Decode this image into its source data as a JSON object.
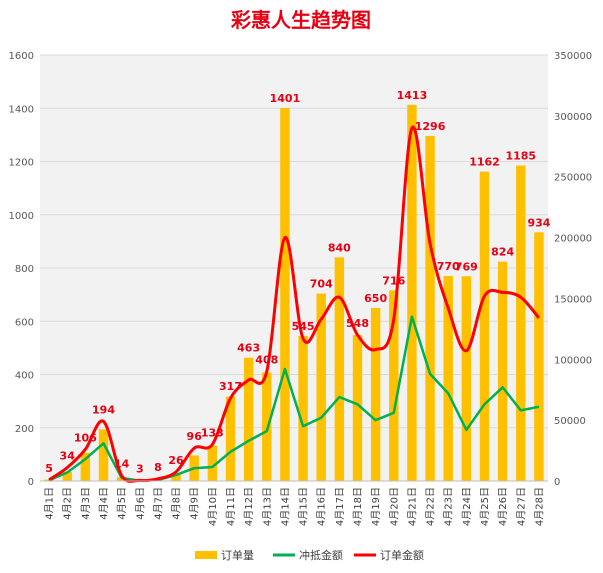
{
  "colors": {
    "bar": "#FFC000",
    "green_line": "#00B050",
    "red_line": "#FF0000",
    "title": "#E60012",
    "label": "#E60012",
    "plot_bg": "#F2F2F2",
    "grid": "#D9D9D9"
  },
  "chart_data": {
    "type": "bar",
    "title": "彩惠人生趋势图",
    "categories": [
      "4月1日",
      "4月2日",
      "4月3日",
      "4月4日",
      "4月5日",
      "4月6日",
      "4月7日",
      "4月8日",
      "4月9日",
      "4月10日",
      "4月11日",
      "4月12日",
      "4月13日",
      "4月14日",
      "4月15日",
      "4月16日",
      "4月17日",
      "4月18日",
      "4月19日",
      "4月20日",
      "4月21日",
      "4月22日",
      "4月23日",
      "4月24日",
      "4月25日",
      "4月26日",
      "4月27日",
      "4月28日"
    ],
    "left_axis": {
      "min": 0,
      "max": 1600,
      "step": 200,
      "ticks": [
        "0",
        "200",
        "400",
        "600",
        "800",
        "1000",
        "1200",
        "1400",
        "1600"
      ]
    },
    "right_axis": {
      "min": 0,
      "max": 350000,
      "step": 50000,
      "ticks": [
        "0",
        "50000",
        "100000",
        "150000",
        "200000",
        "250000",
        "300000",
        "350000"
      ]
    },
    "grid": true,
    "legend_position": "bottom",
    "series": [
      {
        "name": "订单量",
        "type": "bar",
        "axis": "left",
        "values": [
          5,
          34,
          106,
          194,
          14,
          3,
          8,
          26,
          96,
          133,
          317,
          463,
          408,
          1401,
          545,
          704,
          840,
          548,
          650,
          716,
          1413,
          1296,
          770,
          769,
          1162,
          824,
          1185,
          934
        ],
        "labels": [
          "5",
          "34",
          "106",
          "194",
          "14",
          "3",
          "8",
          "26",
          "96",
          "133",
          "317",
          "463",
          "408",
          "1401",
          "545",
          "704",
          "840",
          "548",
          "650",
          "716",
          "1413",
          "1296",
          "770",
          "769",
          "1162",
          "824",
          "1185",
          "934"
        ]
      },
      {
        "name": "冲抵金额",
        "type": "line",
        "axis": "right",
        "values": [
          500,
          7000,
          18000,
          31000,
          2500,
          200,
          800,
          5000,
          10500,
          11500,
          24000,
          33000,
          41000,
          92000,
          45000,
          52000,
          69000,
          63000,
          50000,
          56000,
          135000,
          88000,
          72000,
          42000,
          63000,
          77000,
          58000,
          61000
        ]
      },
      {
        "name": "订单金额",
        "type": "line",
        "axis": "right",
        "smooth": true,
        "values": [
          1000,
          11000,
          26000,
          49000,
          4500,
          500,
          1800,
          7500,
          27000,
          30000,
          68000,
          83000,
          90000,
          200000,
          117000,
          133000,
          151000,
          120000,
          108000,
          133000,
          290000,
          195000,
          142000,
          107000,
          152000,
          155000,
          151000,
          134000
        ]
      }
    ]
  }
}
